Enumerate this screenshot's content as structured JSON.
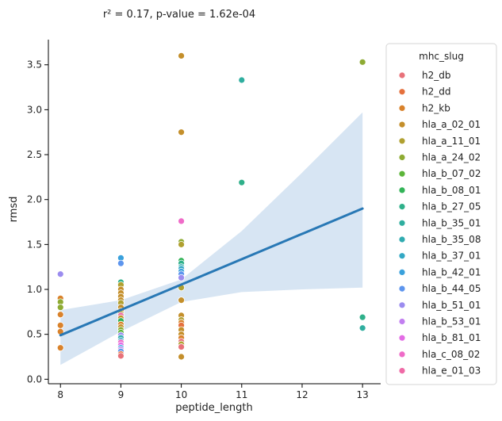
{
  "chart_data": {
    "type": "scatter",
    "title": "r² =  0.17, p-value =  1.62e-04",
    "xlabel": "peptide_length",
    "ylabel": "rmsd",
    "xlim": [
      7.8,
      13.3
    ],
    "ylim": [
      -0.05,
      3.78
    ],
    "x_ticks": [
      8,
      9,
      10,
      11,
      12,
      13
    ],
    "y_ticks": [
      0.0,
      0.5,
      1.0,
      1.5,
      2.0,
      2.5,
      3.0,
      3.5
    ],
    "grid": false,
    "legend": {
      "title": "mhc_slug",
      "position": "right-outside",
      "entries": [
        {
          "name": "h2_db",
          "color": "#e8727a"
        },
        {
          "name": "h2_dd",
          "color": "#e5703d"
        },
        {
          "name": "h2_kb",
          "color": "#d9822b"
        },
        {
          "name": "hla_a_02_01",
          "color": "#c48f2b"
        },
        {
          "name": "hla_a_11_01",
          "color": "#b0a030"
        },
        {
          "name": "hla_a_24_02",
          "color": "#8eab33"
        },
        {
          "name": "hla_b_07_02",
          "color": "#5cb53a"
        },
        {
          "name": "hla_b_08_01",
          "color": "#33b458"
        },
        {
          "name": "hla_b_27_05",
          "color": "#2fb08a"
        },
        {
          "name": "hla_b_35_01",
          "color": "#2fae9f"
        },
        {
          "name": "hla_b_35_08",
          "color": "#30abb0"
        },
        {
          "name": "hla_b_37_01",
          "color": "#33a8c4"
        },
        {
          "name": "hla_b_42_01",
          "color": "#3aa1dc"
        },
        {
          "name": "hla_b_44_05",
          "color": "#5d95ee"
        },
        {
          "name": "hla_b_51_01",
          "color": "#9b8cef"
        },
        {
          "name": "hla_b_53_01",
          "color": "#c27ff0"
        },
        {
          "name": "hla_b_81_01",
          "color": "#e36ce5"
        },
        {
          "name": "hla_c_08_02",
          "color": "#ef6bc8"
        },
        {
          "name": "hla_e_01_03",
          "color": "#ef6aa6"
        }
      ]
    },
    "points": [
      {
        "x": 8,
        "y": 1.17,
        "series": "hla_b_51_01"
      },
      {
        "x": 8,
        "y": 0.9,
        "series": "h2_kb"
      },
      {
        "x": 8,
        "y": 0.86,
        "series": "hla_a_24_02"
      },
      {
        "x": 8,
        "y": 0.8,
        "series": "hla_a_24_02"
      },
      {
        "x": 8,
        "y": 0.72,
        "series": "h2_kb"
      },
      {
        "x": 8,
        "y": 0.6,
        "series": "h2_kb"
      },
      {
        "x": 8,
        "y": 0.53,
        "series": "h2_kb"
      },
      {
        "x": 8,
        "y": 0.35,
        "series": "h2_kb"
      },
      {
        "x": 9,
        "y": 1.35,
        "series": "hla_b_42_01"
      },
      {
        "x": 9,
        "y": 1.29,
        "series": "hla_b_44_05"
      },
      {
        "x": 9,
        "y": 1.08,
        "series": "hla_b_27_05"
      },
      {
        "x": 9,
        "y": 1.05,
        "series": "hla_a_11_01"
      },
      {
        "x": 9,
        "y": 1.0,
        "series": "hla_a_02_01"
      },
      {
        "x": 9,
        "y": 0.96,
        "series": "hla_a_02_01"
      },
      {
        "x": 9,
        "y": 0.92,
        "series": "hla_a_02_01"
      },
      {
        "x": 9,
        "y": 0.88,
        "series": "hla_a_02_01"
      },
      {
        "x": 9,
        "y": 0.85,
        "series": "hla_a_11_01"
      },
      {
        "x": 9,
        "y": 0.8,
        "series": "hla_a_02_01"
      },
      {
        "x": 9,
        "y": 0.76,
        "series": "hla_a_02_01"
      },
      {
        "x": 9,
        "y": 0.73,
        "series": "hla_a_11_01"
      },
      {
        "x": 9,
        "y": 0.71,
        "series": "hla_e_01_03"
      },
      {
        "x": 9,
        "y": 0.68,
        "series": "hla_a_02_01"
      },
      {
        "x": 9,
        "y": 0.65,
        "series": "hla_b_08_01"
      },
      {
        "x": 9,
        "y": 0.61,
        "series": "h2_kb"
      },
      {
        "x": 9,
        "y": 0.58,
        "series": "hla_a_02_01"
      },
      {
        "x": 9,
        "y": 0.55,
        "series": "hla_a_24_02"
      },
      {
        "x": 9,
        "y": 0.52,
        "series": "hla_b_07_02"
      },
      {
        "x": 9,
        "y": 0.49,
        "series": "hla_b_51_01"
      },
      {
        "x": 9,
        "y": 0.46,
        "series": "hla_b_35_08"
      },
      {
        "x": 9,
        "y": 0.43,
        "series": "hla_b_37_01"
      },
      {
        "x": 9,
        "y": 0.41,
        "series": "hla_c_08_02"
      },
      {
        "x": 9,
        "y": 0.38,
        "series": "hla_b_81_01"
      },
      {
        "x": 9,
        "y": 0.35,
        "series": "hla_b_42_01"
      },
      {
        "x": 9,
        "y": 0.33,
        "series": "hla_b_53_01"
      },
      {
        "x": 9,
        "y": 0.31,
        "series": "hla_b_44_05"
      },
      {
        "x": 9,
        "y": 0.28,
        "series": "h2_dd"
      },
      {
        "x": 9,
        "y": 0.26,
        "series": "h2_db"
      },
      {
        "x": 10,
        "y": 3.6,
        "series": "hla_a_02_01"
      },
      {
        "x": 10,
        "y": 2.75,
        "series": "hla_a_02_01"
      },
      {
        "x": 10,
        "y": 1.76,
        "series": "hla_c_08_02"
      },
      {
        "x": 10,
        "y": 1.53,
        "series": "hla_a_24_02"
      },
      {
        "x": 10,
        "y": 1.5,
        "series": "hla_a_11_01"
      },
      {
        "x": 10,
        "y": 1.32,
        "series": "hla_b_08_01"
      },
      {
        "x": 10,
        "y": 1.29,
        "series": "hla_b_27_05"
      },
      {
        "x": 10,
        "y": 1.25,
        "series": "hla_b_35_08"
      },
      {
        "x": 10,
        "y": 1.23,
        "series": "hla_b_37_01"
      },
      {
        "x": 10,
        "y": 1.2,
        "series": "hla_b_42_01"
      },
      {
        "x": 10,
        "y": 1.17,
        "series": "hla_b_44_05"
      },
      {
        "x": 10,
        "y": 1.13,
        "series": "hla_b_51_01"
      },
      {
        "x": 10,
        "y": 1.02,
        "series": "hla_a_11_01"
      },
      {
        "x": 10,
        "y": 0.88,
        "series": "hla_a_02_01"
      },
      {
        "x": 10,
        "y": 0.71,
        "series": "hla_a_02_01"
      },
      {
        "x": 10,
        "y": 0.66,
        "series": "hla_a_11_01"
      },
      {
        "x": 10,
        "y": 0.63,
        "series": "h2_kb"
      },
      {
        "x": 10,
        "y": 0.6,
        "series": "h2_dd"
      },
      {
        "x": 10,
        "y": 0.55,
        "series": "hla_a_02_01"
      },
      {
        "x": 10,
        "y": 0.5,
        "series": "hla_a_02_01"
      },
      {
        "x": 10,
        "y": 0.46,
        "series": "h2_kb"
      },
      {
        "x": 10,
        "y": 0.42,
        "series": "h2_db"
      },
      {
        "x": 10,
        "y": 0.39,
        "series": "hla_a_11_01"
      },
      {
        "x": 10,
        "y": 0.36,
        "series": "h2_db"
      },
      {
        "x": 10,
        "y": 0.25,
        "series": "hla_a_02_01"
      },
      {
        "x": 11,
        "y": 3.33,
        "series": "hla_b_35_01"
      },
      {
        "x": 11,
        "y": 2.19,
        "series": "hla_b_27_05"
      },
      {
        "x": 13,
        "y": 3.53,
        "series": "hla_a_24_02"
      },
      {
        "x": 13,
        "y": 0.69,
        "series": "hla_b_27_05"
      },
      {
        "x": 13,
        "y": 0.57,
        "series": "hla_b_35_01"
      }
    ],
    "regression": {
      "x": [
        8,
        13
      ],
      "y": [
        0.49,
        1.9
      ],
      "color": "#2878b5",
      "ci_upper": [
        [
          8,
          0.77
        ],
        [
          9,
          0.88
        ],
        [
          10,
          1.11
        ],
        [
          11,
          1.65
        ],
        [
          12,
          2.3
        ],
        [
          13,
          2.97
        ]
      ],
      "ci_lower": [
        [
          8,
          0.16
        ],
        [
          9,
          0.53
        ],
        [
          10,
          0.86
        ],
        [
          11,
          0.97
        ],
        [
          12,
          1.0
        ],
        [
          13,
          1.02
        ]
      ],
      "ci_color": "#c6daee"
    }
  }
}
